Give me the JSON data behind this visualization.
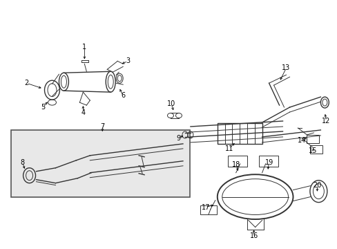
{
  "background_color": "#ffffff",
  "figure_width": 4.89,
  "figure_height": 3.6,
  "dpi": 100,
  "line_color": "#333333",
  "label_color": "#000000",
  "label_fontsize": 7.0
}
